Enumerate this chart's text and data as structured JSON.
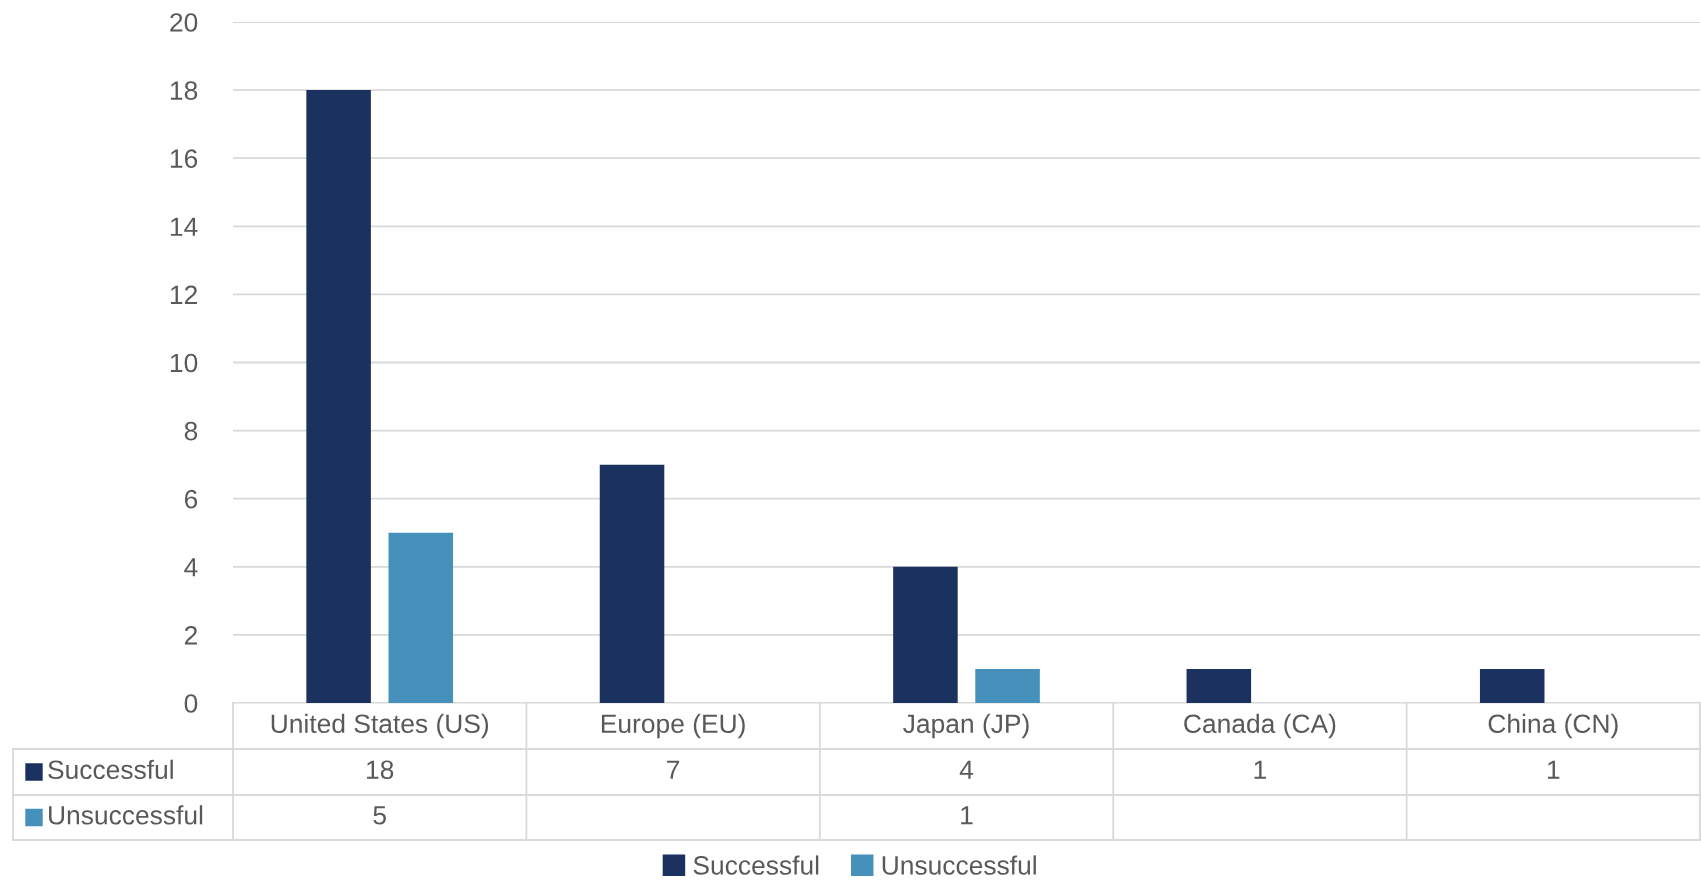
{
  "chart_data": {
    "type": "bar",
    "categories": [
      "United States (US)",
      "Europe (EU)",
      "Japan (JP)",
      "Canada (CA)",
      "China (CN)"
    ],
    "series": [
      {
        "name": "Successful",
        "color": "#1b3260",
        "values": [
          18,
          7,
          4,
          1,
          1
        ]
      },
      {
        "name": "Unsuccessful",
        "color": "#4591bb",
        "values": [
          5,
          null,
          1,
          null,
          null
        ]
      }
    ],
    "ylim": [
      0,
      20
    ],
    "yticks": [
      0,
      2,
      4,
      6,
      8,
      10,
      12,
      14,
      16,
      18,
      20
    ],
    "grid": "y",
    "legend": "bottom",
    "data_labels": true
  }
}
